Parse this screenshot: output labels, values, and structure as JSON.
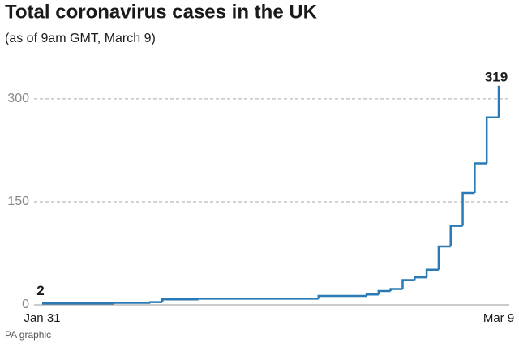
{
  "chart_data": {
    "type": "step",
    "title": "Total coronavirus cases in the UK",
    "subtitle": "(as of 9am GMT, March 9)",
    "source": "PA graphic",
    "x": [
      0,
      6,
      9,
      10,
      13,
      23,
      27,
      28,
      29,
      30,
      31,
      32,
      33,
      34,
      35,
      36,
      37,
      38
    ],
    "values": [
      2,
      3,
      4,
      8,
      9,
      13,
      15,
      20,
      23,
      36,
      40,
      51,
      85,
      115,
      163,
      206,
      273,
      319
    ],
    "color": "#2a7ab5",
    "xlim": [
      0,
      38
    ],
    "xticks": [
      {
        "value": 0,
        "label": "Jan 31"
      },
      {
        "value": 38,
        "label": "Mar 9"
      }
    ],
    "ylim": [
      0,
      330
    ],
    "yticks": [
      0,
      150,
      300
    ],
    "grid": true
  }
}
